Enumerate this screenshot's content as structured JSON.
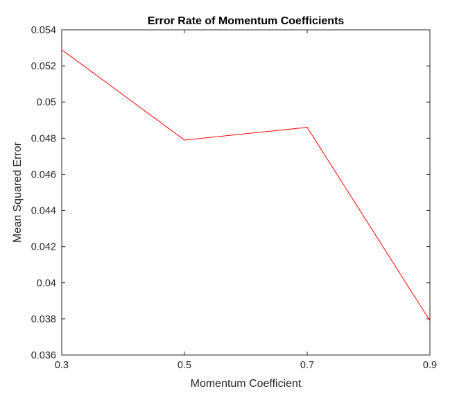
{
  "chart_data": {
    "type": "line",
    "title": "Error Rate of Momentum Coefficients",
    "xlabel": "Momentum Coefficient",
    "ylabel": "Mean Squared Error",
    "xlim": [
      0.3,
      0.9
    ],
    "ylim": [
      0.036,
      0.054
    ],
    "x_ticks": [
      "0.3",
      "0.5",
      "0.7",
      "0.9"
    ],
    "y_ticks": [
      "0.036",
      "0.038",
      "0.04",
      "0.042",
      "0.044",
      "0.046",
      "0.048",
      "0.05",
      "0.052",
      "0.054"
    ],
    "grid": false,
    "series": [
      {
        "x": [
          0.3,
          0.5,
          0.7,
          0.9
        ],
        "y": [
          0.0529,
          0.0479,
          0.0486,
          0.0379
        ],
        "color": "#ff0000"
      }
    ]
  }
}
